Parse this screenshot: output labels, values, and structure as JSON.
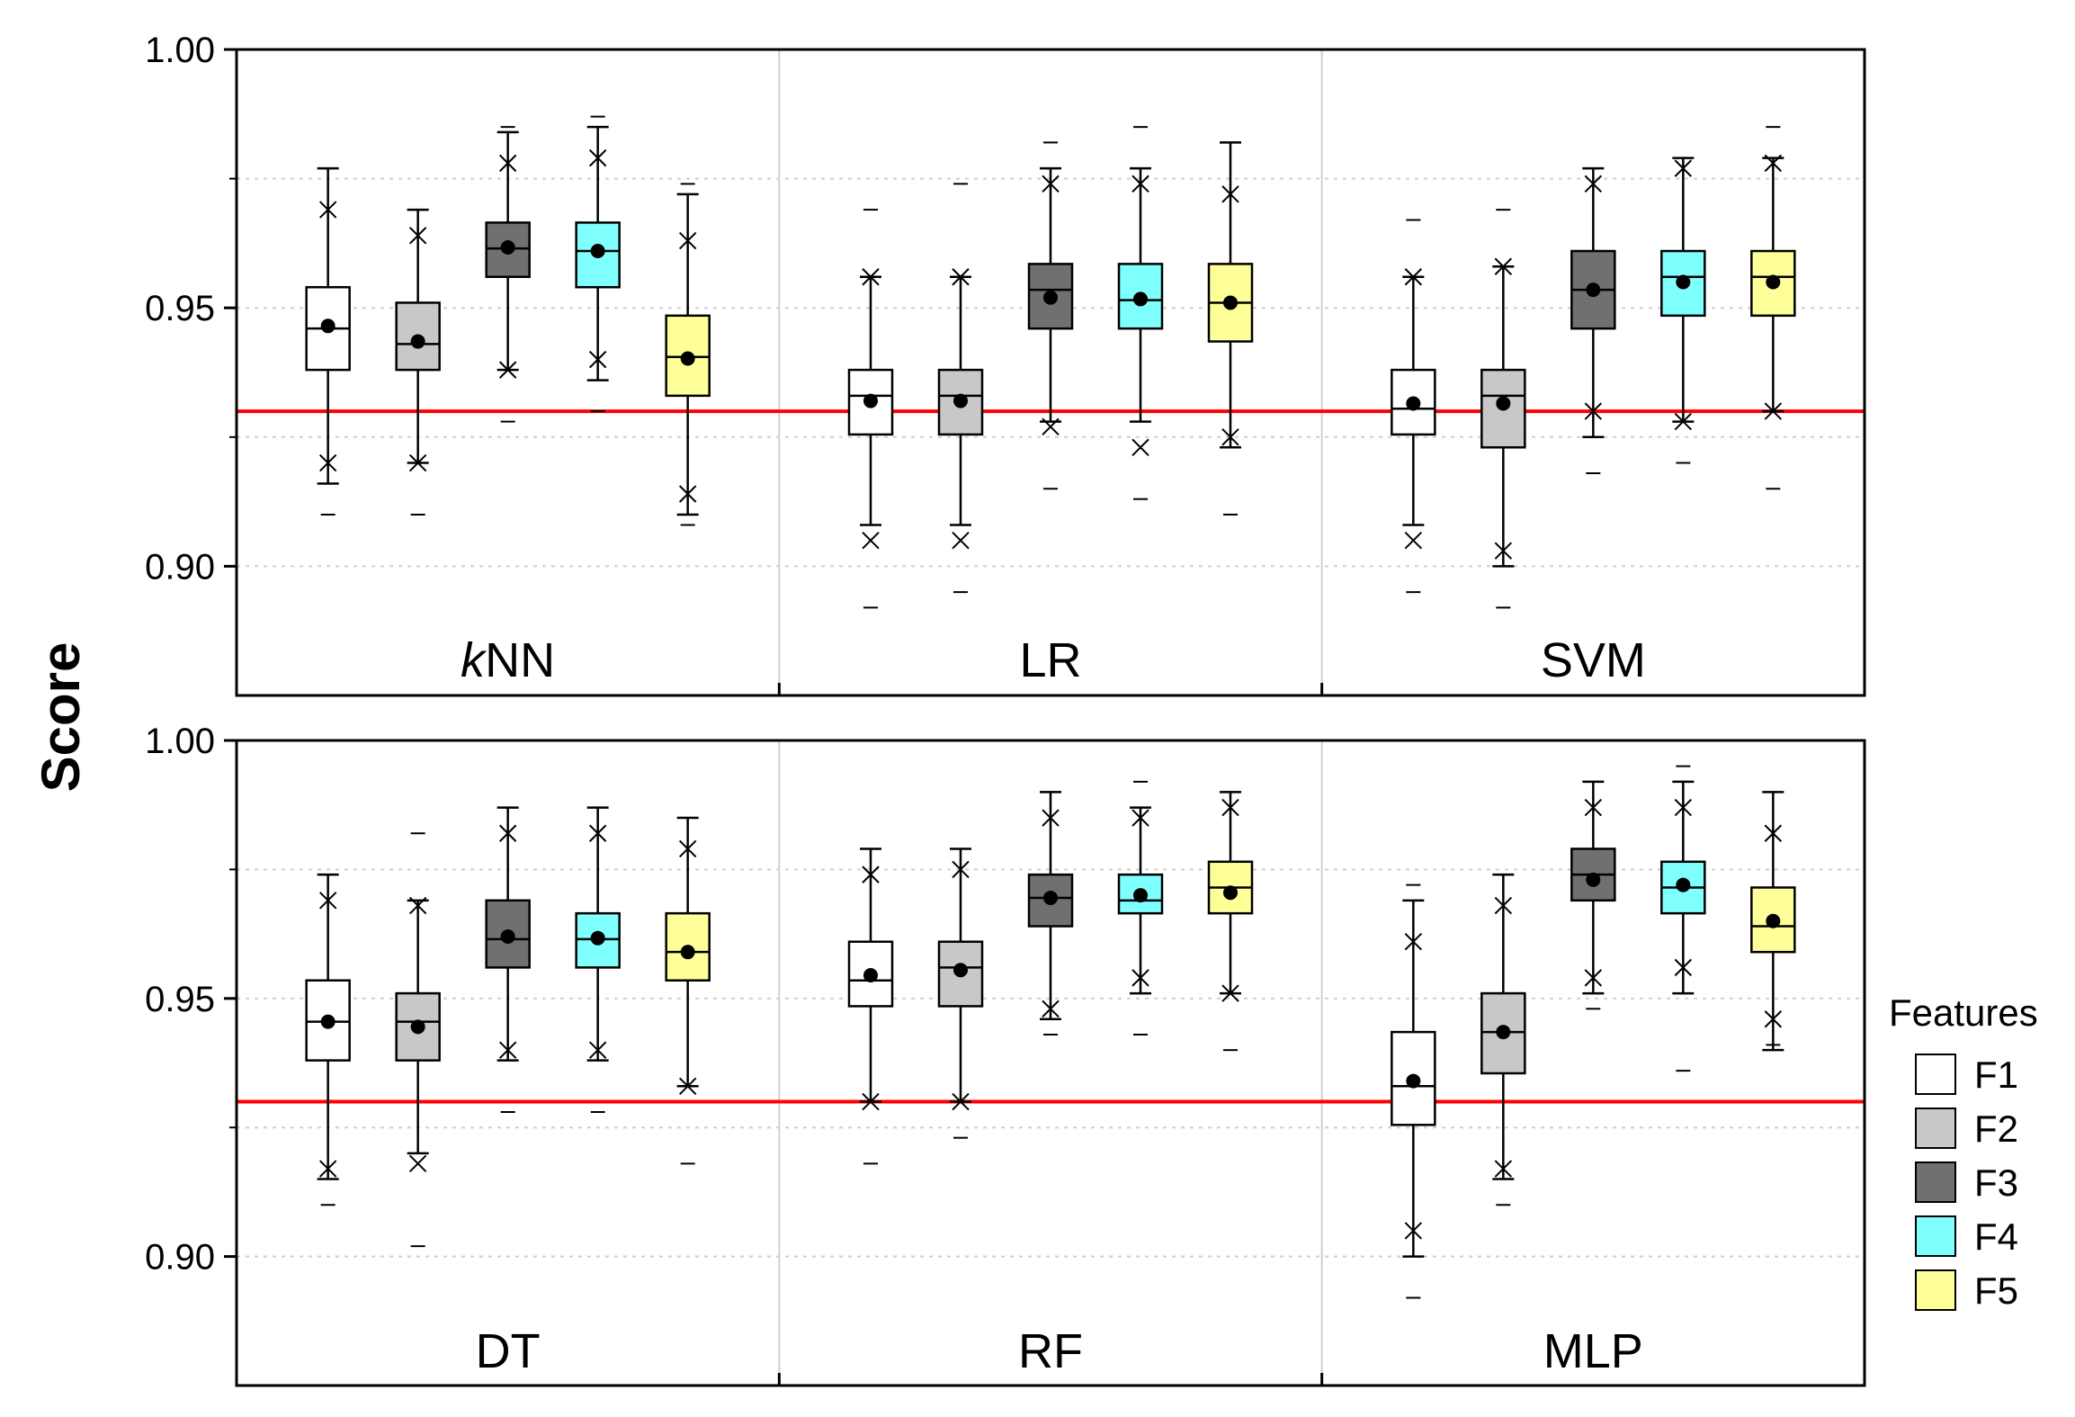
{
  "chart_data": {
    "type": "box",
    "ylabel": "Score",
    "ylim": [
      0.88,
      1.005
    ],
    "yticks": [
      0.9,
      0.95,
      1.0
    ],
    "ytick_labels": [
      "0.90",
      "0.95",
      "1.00"
    ],
    "baseline": 0.93,
    "baseline_color": "#ff0000",
    "grid": true,
    "features": [
      {
        "name": "F1",
        "color": "#ffffff"
      },
      {
        "name": "F2",
        "color": "#c8c8c8"
      },
      {
        "name": "F3",
        "color": "#707070"
      },
      {
        "name": "F4",
        "color": "#80ffff"
      },
      {
        "name": "F5",
        "color": "#ffff99"
      }
    ],
    "legend": {
      "title": "Features",
      "position": "right"
    },
    "panels": [
      {
        "name": "kNN",
        "label_italic": "k",
        "label_rest": "NN",
        "boxes": [
          {
            "q1": 0.938,
            "median": 0.946,
            "q3": 0.954,
            "whisker_low": 0.916,
            "whisker_high": 0.977,
            "mean": 0.9465,
            "x1": 0.92,
            "x99": 0.969,
            "min": 0.91,
            "max": 0.977
          },
          {
            "q1": 0.938,
            "median": 0.943,
            "q3": 0.951,
            "whisker_low": 0.92,
            "whisker_high": 0.969,
            "mean": 0.9435,
            "x1": 0.92,
            "x99": 0.964,
            "min": 0.91,
            "max": 0.969
          },
          {
            "q1": 0.956,
            "median": 0.9615,
            "q3": 0.9665,
            "whisker_low": 0.938,
            "whisker_high": 0.984,
            "mean": 0.9617,
            "x1": 0.938,
            "x99": 0.978,
            "min": 0.928,
            "max": 0.985
          },
          {
            "q1": 0.954,
            "median": 0.961,
            "q3": 0.9665,
            "whisker_low": 0.936,
            "whisker_high": 0.985,
            "mean": 0.961,
            "x1": 0.94,
            "x99": 0.979,
            "min": 0.93,
            "max": 0.987
          },
          {
            "q1": 0.933,
            "median": 0.9405,
            "q3": 0.9485,
            "whisker_low": 0.91,
            "whisker_high": 0.972,
            "mean": 0.9402,
            "x1": 0.914,
            "x99": 0.963,
            "min": 0.908,
            "max": 0.974
          }
        ]
      },
      {
        "name": "LR",
        "label_italic": "",
        "label_rest": "LR",
        "boxes": [
          {
            "q1": 0.9255,
            "median": 0.933,
            "q3": 0.938,
            "whisker_low": 0.908,
            "whisker_high": 0.956,
            "mean": 0.932,
            "x1": 0.905,
            "x99": 0.956,
            "min": 0.892,
            "max": 0.969
          },
          {
            "q1": 0.9255,
            "median": 0.933,
            "q3": 0.938,
            "whisker_low": 0.908,
            "whisker_high": 0.956,
            "mean": 0.932,
            "x1": 0.905,
            "x99": 0.956,
            "min": 0.895,
            "max": 0.974
          },
          {
            "q1": 0.946,
            "median": 0.9535,
            "q3": 0.9585,
            "whisker_low": 0.928,
            "whisker_high": 0.977,
            "mean": 0.952,
            "x1": 0.927,
            "x99": 0.974,
            "min": 0.915,
            "max": 0.982
          },
          {
            "q1": 0.946,
            "median": 0.9515,
            "q3": 0.9585,
            "whisker_low": 0.928,
            "whisker_high": 0.977,
            "mean": 0.9517,
            "x1": 0.923,
            "x99": 0.974,
            "min": 0.913,
            "max": 0.985
          },
          {
            "q1": 0.9435,
            "median": 0.951,
            "q3": 0.9585,
            "whisker_low": 0.923,
            "whisker_high": 0.982,
            "mean": 0.951,
            "x1": 0.925,
            "x99": 0.972,
            "min": 0.91,
            "max": 0.982
          }
        ]
      },
      {
        "name": "SVM",
        "label_italic": "",
        "label_rest": "SVM",
        "boxes": [
          {
            "q1": 0.9255,
            "median": 0.9305,
            "q3": 0.938,
            "whisker_low": 0.908,
            "whisker_high": 0.956,
            "mean": 0.9315,
            "x1": 0.905,
            "x99": 0.956,
            "min": 0.895,
            "max": 0.967
          },
          {
            "q1": 0.923,
            "median": 0.933,
            "q3": 0.938,
            "whisker_low": 0.9,
            "whisker_high": 0.958,
            "mean": 0.9315,
            "x1": 0.903,
            "x99": 0.958,
            "min": 0.892,
            "max": 0.969
          },
          {
            "q1": 0.946,
            "median": 0.9535,
            "q3": 0.961,
            "whisker_low": 0.925,
            "whisker_high": 0.977,
            "mean": 0.9535,
            "x1": 0.93,
            "x99": 0.974,
            "min": 0.918,
            "max": 0.977
          },
          {
            "q1": 0.9485,
            "median": 0.956,
            "q3": 0.961,
            "whisker_low": 0.928,
            "whisker_high": 0.979,
            "mean": 0.955,
            "x1": 0.928,
            "x99": 0.977,
            "min": 0.92,
            "max": 0.979
          },
          {
            "q1": 0.9485,
            "median": 0.956,
            "q3": 0.961,
            "whisker_low": 0.93,
            "whisker_high": 0.979,
            "mean": 0.955,
            "x1": 0.93,
            "x99": 0.978,
            "min": 0.915,
            "max": 0.985
          }
        ]
      },
      {
        "name": "DT",
        "label_italic": "",
        "label_rest": "DT",
        "boxes": [
          {
            "q1": 0.938,
            "median": 0.9455,
            "q3": 0.9535,
            "whisker_low": 0.915,
            "whisker_high": 0.974,
            "mean": 0.9455,
            "x1": 0.917,
            "x99": 0.969,
            "min": 0.91,
            "max": 0.974
          },
          {
            "q1": 0.938,
            "median": 0.9455,
            "q3": 0.951,
            "whisker_low": 0.92,
            "whisker_high": 0.969,
            "mean": 0.9445,
            "x1": 0.918,
            "x99": 0.968,
            "min": 0.902,
            "max": 0.982
          },
          {
            "q1": 0.956,
            "median": 0.9615,
            "q3": 0.969,
            "whisker_low": 0.938,
            "whisker_high": 0.987,
            "mean": 0.962,
            "x1": 0.94,
            "x99": 0.982,
            "min": 0.928,
            "max": 0.987
          },
          {
            "q1": 0.956,
            "median": 0.9615,
            "q3": 0.9665,
            "whisker_low": 0.938,
            "whisker_high": 0.987,
            "mean": 0.9617,
            "x1": 0.94,
            "x99": 0.982,
            "min": 0.928,
            "max": 0.987
          },
          {
            "q1": 0.9535,
            "median": 0.959,
            "q3": 0.9665,
            "whisker_low": 0.933,
            "whisker_high": 0.985,
            "mean": 0.959,
            "x1": 0.933,
            "x99": 0.979,
            "min": 0.918,
            "max": 0.985
          }
        ]
      },
      {
        "name": "RF",
        "label_italic": "",
        "label_rest": "RF",
        "boxes": [
          {
            "q1": 0.9485,
            "median": 0.9535,
            "q3": 0.961,
            "whisker_low": 0.93,
            "whisker_high": 0.979,
            "mean": 0.9545,
            "x1": 0.93,
            "x99": 0.974,
            "min": 0.918,
            "max": 0.979
          },
          {
            "q1": 0.9485,
            "median": 0.956,
            "q3": 0.961,
            "whisker_low": 0.93,
            "whisker_high": 0.979,
            "mean": 0.9555,
            "x1": 0.93,
            "x99": 0.975,
            "min": 0.923,
            "max": 0.979
          },
          {
            "q1": 0.964,
            "median": 0.9695,
            "q3": 0.974,
            "whisker_low": 0.946,
            "whisker_high": 0.99,
            "mean": 0.9695,
            "x1": 0.948,
            "x99": 0.985,
            "min": 0.943,
            "max": 0.99
          },
          {
            "q1": 0.9665,
            "median": 0.969,
            "q3": 0.974,
            "whisker_low": 0.951,
            "whisker_high": 0.987,
            "mean": 0.97,
            "x1": 0.954,
            "x99": 0.985,
            "min": 0.943,
            "max": 0.992
          },
          {
            "q1": 0.9665,
            "median": 0.9715,
            "q3": 0.9765,
            "whisker_low": 0.951,
            "whisker_high": 0.99,
            "mean": 0.9705,
            "x1": 0.951,
            "x99": 0.987,
            "min": 0.94,
            "max": 0.99
          }
        ]
      },
      {
        "name": "MLP",
        "label_italic": "",
        "label_rest": "MLP",
        "boxes": [
          {
            "q1": 0.9255,
            "median": 0.933,
            "q3": 0.9435,
            "whisker_low": 0.9,
            "whisker_high": 0.969,
            "mean": 0.934,
            "x1": 0.905,
            "x99": 0.961,
            "min": 0.892,
            "max": 0.972
          },
          {
            "q1": 0.9355,
            "median": 0.9435,
            "q3": 0.951,
            "whisker_low": 0.915,
            "whisker_high": 0.974,
            "mean": 0.9435,
            "x1": 0.917,
            "x99": 0.968,
            "min": 0.91,
            "max": 0.974
          },
          {
            "q1": 0.969,
            "median": 0.974,
            "q3": 0.979,
            "whisker_low": 0.951,
            "whisker_high": 0.992,
            "mean": 0.973,
            "x1": 0.954,
            "x99": 0.987,
            "min": 0.948,
            "max": 0.992
          },
          {
            "q1": 0.9665,
            "median": 0.9715,
            "q3": 0.9765,
            "whisker_low": 0.951,
            "whisker_high": 0.992,
            "mean": 0.972,
            "x1": 0.956,
            "x99": 0.987,
            "min": 0.936,
            "max": 0.995
          },
          {
            "q1": 0.959,
            "median": 0.964,
            "q3": 0.9715,
            "whisker_low": 0.94,
            "whisker_high": 0.99,
            "mean": 0.965,
            "x1": 0.946,
            "x99": 0.982,
            "min": 0.941,
            "max": 0.99
          }
        ]
      }
    ]
  }
}
